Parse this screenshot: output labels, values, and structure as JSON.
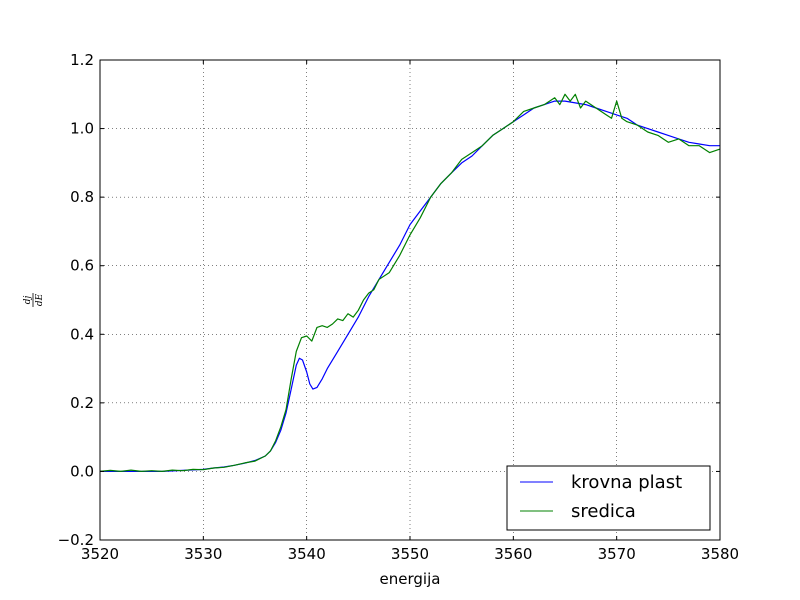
{
  "chart_data": {
    "type": "line",
    "xlabel": "energija",
    "ylabel": {
      "numerator": "dj",
      "denominator": "dE"
    },
    "xlim": [
      3520,
      3580
    ],
    "ylim": [
      -0.2,
      1.2
    ],
    "xticks": [
      3520,
      3530,
      3540,
      3550,
      3560,
      3570,
      3580
    ],
    "yticks": [
      -0.2,
      0.0,
      0.2,
      0.4,
      0.6,
      0.8,
      1.0,
      1.2
    ],
    "xtick_labels": [
      "3520",
      "3530",
      "3540",
      "3550",
      "3560",
      "3570",
      "3580"
    ],
    "ytick_labels": [
      "−0.2",
      "0.0",
      "0.2",
      "0.4",
      "0.6",
      "0.8",
      "1.0",
      "1.2"
    ],
    "grid": true,
    "legend_position": "lower-right",
    "series": [
      {
        "name": "krovna plast",
        "color": "#0000ff",
        "x": [
          3520,
          3522,
          3524,
          3526,
          3528,
          3530,
          3531,
          3532,
          3533,
          3534,
          3535,
          3536,
          3536.5,
          3537,
          3537.5,
          3538,
          3538.5,
          3539,
          3539.3,
          3539.6,
          3540,
          3540.3,
          3540.6,
          3541,
          3541.5,
          3542,
          3543,
          3544,
          3545,
          3546,
          3547,
          3548,
          3549,
          3550,
          3551,
          3552,
          3553,
          3554,
          3555,
          3556,
          3557,
          3558,
          3559,
          3560,
          3561,
          3562,
          3563,
          3564,
          3565,
          3566,
          3567,
          3568,
          3569,
          3570,
          3571,
          3572,
          3573,
          3574,
          3575,
          3576,
          3577,
          3578,
          3579,
          3580
        ],
        "y": [
          0.0,
          0.0,
          0.0,
          0.0,
          0.003,
          0.006,
          0.01,
          0.013,
          0.018,
          0.024,
          0.032,
          0.045,
          0.06,
          0.085,
          0.12,
          0.17,
          0.24,
          0.31,
          0.33,
          0.325,
          0.29,
          0.255,
          0.24,
          0.245,
          0.27,
          0.3,
          0.35,
          0.4,
          0.45,
          0.51,
          0.56,
          0.61,
          0.66,
          0.72,
          0.76,
          0.8,
          0.84,
          0.87,
          0.9,
          0.92,
          0.95,
          0.98,
          1.0,
          1.02,
          1.04,
          1.06,
          1.07,
          1.08,
          1.08,
          1.075,
          1.07,
          1.06,
          1.05,
          1.04,
          1.03,
          1.01,
          1.0,
          0.99,
          0.98,
          0.97,
          0.96,
          0.955,
          0.95,
          0.95
        ]
      },
      {
        "name": "sredica",
        "color": "#008000",
        "x": [
          3520,
          3521,
          3522,
          3523,
          3524,
          3525,
          3526,
          3527,
          3528,
          3529,
          3530,
          3531,
          3532,
          3533,
          3534,
          3535,
          3536,
          3536.5,
          3537,
          3537.5,
          3538,
          3538.5,
          3539,
          3539.5,
          3540,
          3540.5,
          3541,
          3541.5,
          3542,
          3542.5,
          3543,
          3543.5,
          3544,
          3544.5,
          3545,
          3545.5,
          3546,
          3546.5,
          3547,
          3548,
          3549,
          3550,
          3551,
          3552,
          3553,
          3554,
          3555,
          3556,
          3557,
          3558,
          3559,
          3560,
          3561,
          3562,
          3563,
          3564,
          3564.5,
          3565,
          3565.5,
          3566,
          3566.5,
          3567,
          3568,
          3569,
          3569.5,
          3570,
          3570.5,
          3571,
          3572,
          3573,
          3574,
          3574.5,
          3575,
          3576,
          3577,
          3578,
          3579,
          3580
        ],
        "y": [
          0.0,
          0.003,
          0.0,
          0.004,
          0.0,
          0.002,
          0.0,
          0.004,
          0.002,
          0.006,
          0.005,
          0.01,
          0.012,
          0.018,
          0.025,
          0.03,
          0.045,
          0.06,
          0.09,
          0.13,
          0.18,
          0.27,
          0.35,
          0.39,
          0.395,
          0.38,
          0.42,
          0.425,
          0.42,
          0.43,
          0.445,
          0.44,
          0.46,
          0.45,
          0.47,
          0.5,
          0.52,
          0.53,
          0.56,
          0.58,
          0.63,
          0.69,
          0.74,
          0.8,
          0.84,
          0.87,
          0.91,
          0.93,
          0.95,
          0.98,
          1.0,
          1.02,
          1.05,
          1.06,
          1.07,
          1.09,
          1.07,
          1.1,
          1.08,
          1.1,
          1.06,
          1.08,
          1.06,
          1.04,
          1.03,
          1.08,
          1.03,
          1.02,
          1.01,
          0.99,
          0.98,
          0.97,
          0.96,
          0.97,
          0.95,
          0.95,
          0.93,
          0.94
        ]
      }
    ]
  }
}
